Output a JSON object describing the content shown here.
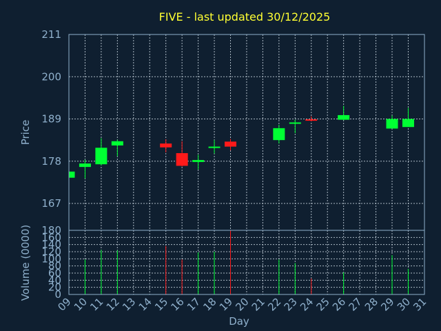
{
  "chart_data": [
    {
      "type": "candlestick",
      "title": "FIVE - last updated 30/12/2025",
      "ylabel": "Price",
      "ylim": [
        160,
        211
      ],
      "yticks": [
        211,
        200,
        189,
        178,
        167
      ],
      "grid": true,
      "up_color": "#00ff33",
      "down_color": "#ff1a1a",
      "days": [
        "09",
        "10",
        "11",
        "12",
        "13",
        "14",
        "15",
        "16",
        "17",
        "18",
        "19",
        "20",
        "21",
        "22",
        "23",
        "24",
        "25",
        "26",
        "27",
        "28",
        "29",
        "30",
        "31"
      ],
      "candles": [
        {
          "day": "09",
          "open": 173.7,
          "close": 175.3,
          "high": 175.5,
          "low": 173.5
        },
        {
          "day": "10",
          "open": 176.5,
          "close": 177.4,
          "high": 178.4,
          "low": 173.5
        },
        {
          "day": "11",
          "open": 177.2,
          "close": 181.5,
          "high": 184.0,
          "low": 176.9
        },
        {
          "day": "12",
          "open": 182.1,
          "close": 183.2,
          "high": 183.6,
          "low": 179.3
        },
        {
          "day": "15",
          "open": 182.6,
          "close": 181.6,
          "high": 183.7,
          "low": 180.3
        },
        {
          "day": "16",
          "open": 180.1,
          "close": 176.8,
          "high": 183.2,
          "low": 176.6
        },
        {
          "day": "17",
          "open": 177.8,
          "close": 178.3,
          "high": 179.7,
          "low": 175.8
        },
        {
          "day": "18",
          "open": 181.7,
          "close": 181.8,
          "high": 183.5,
          "low": 180.0
        },
        {
          "day": "19",
          "open": 183.1,
          "close": 181.8,
          "high": 183.8,
          "low": 180.8
        },
        {
          "day": "22",
          "open": 183.5,
          "close": 186.6,
          "high": 187.5,
          "low": 182.6
        },
        {
          "day": "23",
          "open": 187.9,
          "close": 188.1,
          "high": 188.8,
          "low": 185.3
        },
        {
          "day": "24",
          "open": 188.9,
          "close": 188.8,
          "high": 189.7,
          "low": 188.4
        },
        {
          "day": "26",
          "open": 188.8,
          "close": 190.0,
          "high": 192.4,
          "low": 188.7
        },
        {
          "day": "29",
          "open": 186.5,
          "close": 189.0,
          "high": 189.9,
          "low": 186.5
        },
        {
          "day": "30",
          "open": 186.9,
          "close": 189.0,
          "high": 191.9,
          "low": 186.9
        }
      ]
    },
    {
      "type": "bar",
      "xlabel": "Day",
      "ylabel": "Volume (0000)",
      "ylim": [
        0,
        180
      ],
      "yticks": [
        180,
        160,
        140,
        120,
        100,
        80,
        60,
        40,
        20,
        0
      ],
      "grid": true,
      "categories": [
        "09",
        "10",
        "11",
        "12",
        "13",
        "14",
        "15",
        "16",
        "17",
        "18",
        "19",
        "20",
        "21",
        "22",
        "23",
        "24",
        "25",
        "26",
        "27",
        "28",
        "29",
        "30",
        "31"
      ],
      "bars": [
        {
          "day": "10",
          "value": 98,
          "direction": "up"
        },
        {
          "day": "11",
          "value": 125,
          "direction": "up"
        },
        {
          "day": "12",
          "value": 124,
          "direction": "up"
        },
        {
          "day": "15",
          "value": 136,
          "direction": "down"
        },
        {
          "day": "16",
          "value": 98,
          "direction": "down"
        },
        {
          "day": "17",
          "value": 118,
          "direction": "up"
        },
        {
          "day": "18",
          "value": 120,
          "direction": "up"
        },
        {
          "day": "19",
          "value": 180,
          "direction": "down"
        },
        {
          "day": "22",
          "value": 98,
          "direction": "up"
        },
        {
          "day": "23",
          "value": 88,
          "direction": "up"
        },
        {
          "day": "24",
          "value": 45,
          "direction": "down"
        },
        {
          "day": "26",
          "value": 62,
          "direction": "up"
        },
        {
          "day": "29",
          "value": 110,
          "direction": "up"
        },
        {
          "day": "30",
          "value": 72,
          "direction": "up"
        }
      ]
    }
  ]
}
